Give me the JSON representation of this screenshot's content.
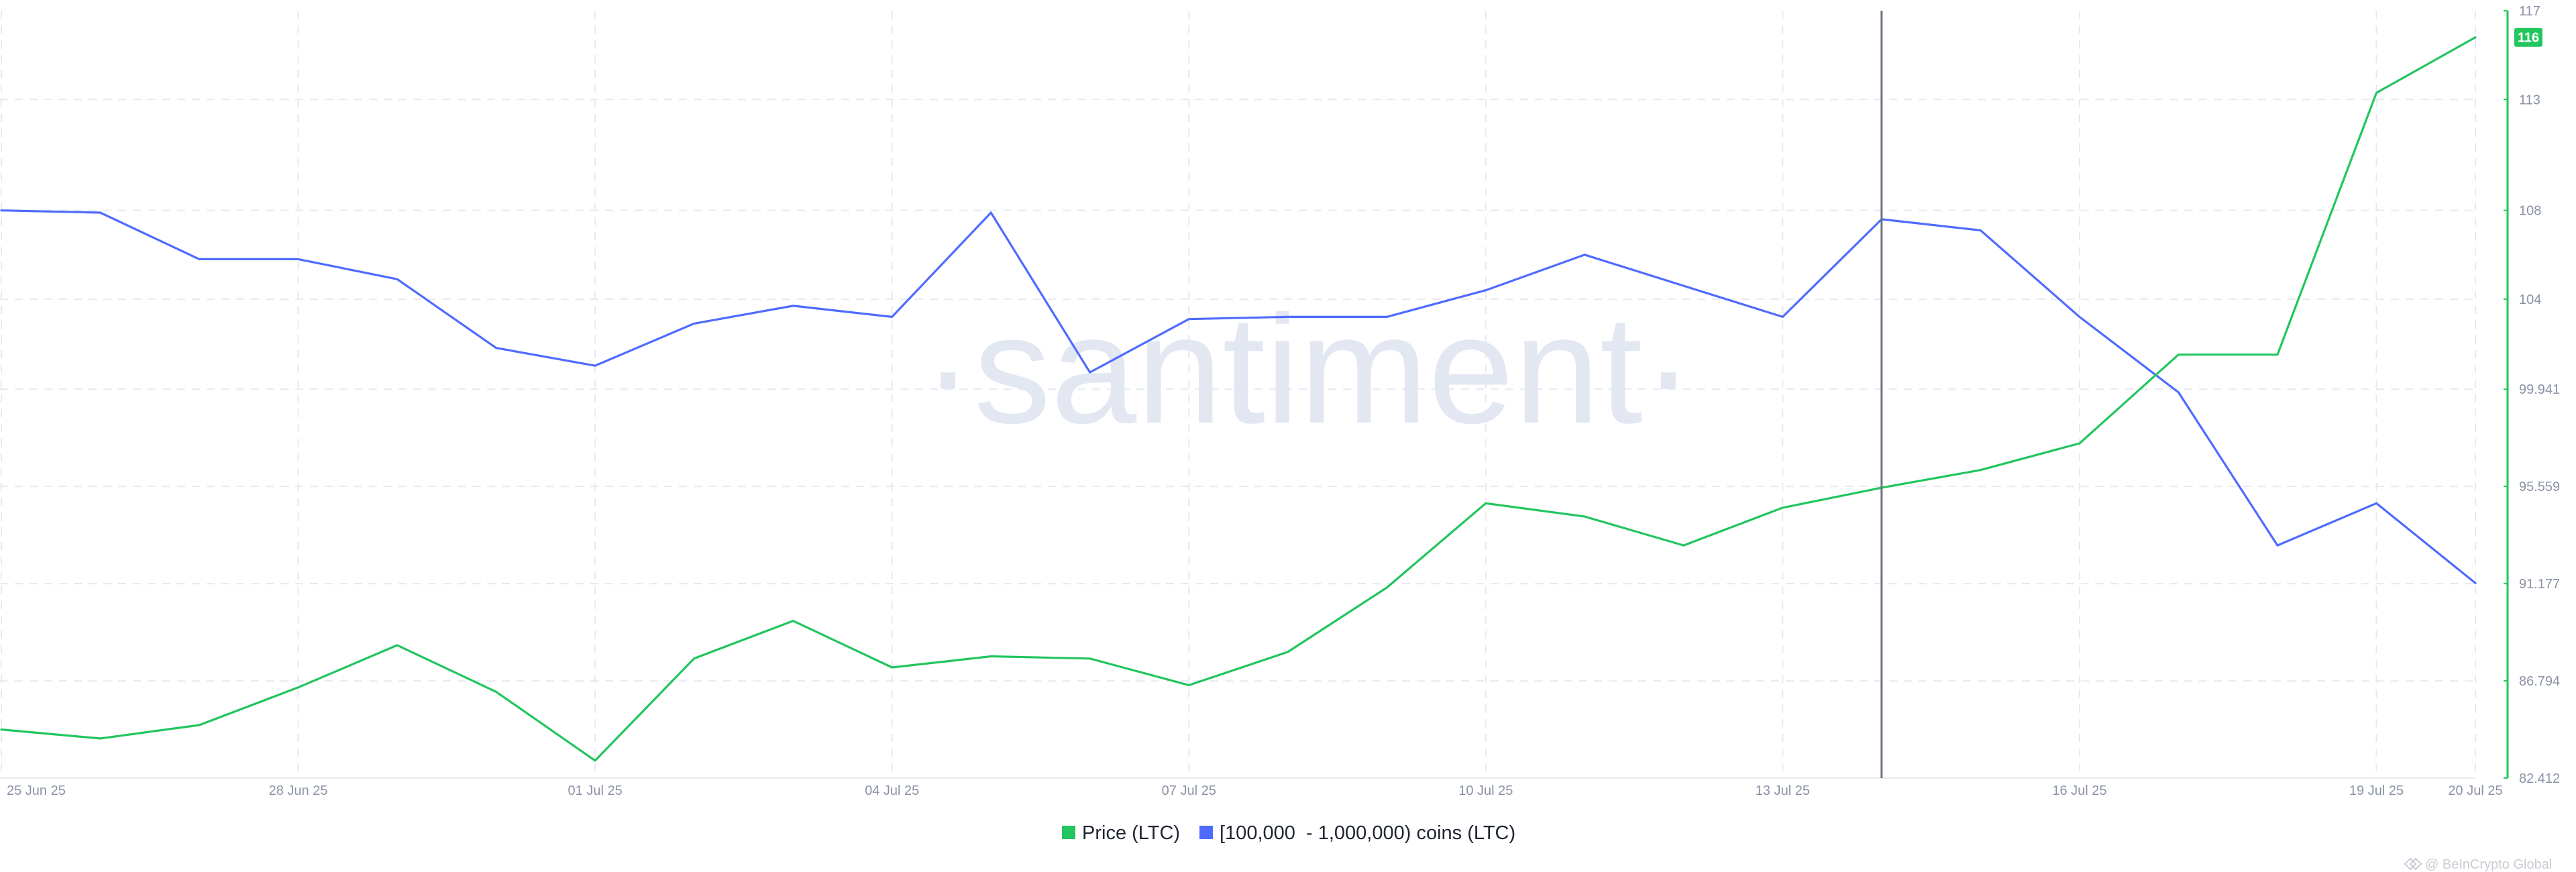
{
  "colors": {
    "price": "#22c55e",
    "holders": "#4f6bff",
    "grid": "#e6e9ef",
    "axis_text": "#8a92a6",
    "crosshair": "#6b7280",
    "watermark": "#e3e7f2"
  },
  "watermark": "·santiment·",
  "footer": "@ BeInCrypto Global",
  "footer_icon": "beincrypto-logo-icon",
  "current_price_badge": "116",
  "legend": [
    {
      "label": "Price (LTC)",
      "color": "#22c55e"
    },
    {
      "label": "[100,000  - 1,000,000) coins (LTC)",
      "color": "#4f6bff"
    }
  ],
  "chart_data": {
    "type": "line",
    "x": [
      "25 Jun 25",
      "26 Jun 25",
      "27 Jun 25",
      "28 Jun 25",
      "29 Jun 25",
      "30 Jun 25",
      "01 Jul 25",
      "02 Jul 25",
      "03 Jul 25",
      "04 Jul 25",
      "05 Jul 25",
      "06 Jul 25",
      "07 Jul 25",
      "08 Jul 25",
      "09 Jul 25",
      "10 Jul 25",
      "11 Jul 25",
      "12 Jul 25",
      "13 Jul 25",
      "14 Jul 25",
      "15 Jul 25",
      "16 Jul 25",
      "17 Jul 25",
      "18 Jul 25",
      "19 Jul 25",
      "20 Jul 25"
    ],
    "x_tick_labels": [
      "25 Jun 25",
      "28 Jun 25",
      "01 Jul 25",
      "04 Jul 25",
      "07 Jul 25",
      "10 Jul 25",
      "13 Jul 25",
      "16 Jul 25",
      "19 Jul 25",
      "20 Jul 25"
    ],
    "y_tick_labels": [
      "117",
      "113",
      "108",
      "104",
      "99.941",
      "95.559",
      "91.177",
      "86.794",
      "82.412"
    ],
    "ylim": [
      82.412,
      117
    ],
    "crosshair_x": "14 Jul 25",
    "grid": true,
    "legend_position": "bottom-center",
    "series": [
      {
        "name": "Price (LTC)",
        "color": "#22c55e",
        "values": [
          84.6,
          84.2,
          84.8,
          86.5,
          88.4,
          86.3,
          83.2,
          87.8,
          89.5,
          87.4,
          87.9,
          87.8,
          86.6,
          88.1,
          91.0,
          94.8,
          94.2,
          92.9,
          94.6,
          95.5,
          96.3,
          97.5,
          101.5,
          101.5,
          113.3,
          115.8
        ]
      },
      {
        "name": "[100,000  - 1,000,000) coins (LTC)",
        "color": "#4f6bff",
        "values": [
          108.0,
          107.9,
          105.8,
          105.8,
          104.9,
          101.8,
          101.0,
          102.9,
          103.7,
          103.2,
          107.9,
          100.7,
          103.1,
          103.2,
          103.2,
          104.4,
          106.0,
          104.6,
          103.2,
          107.6,
          107.1,
          103.2,
          99.8,
          92.9,
          94.8,
          91.2
        ]
      }
    ]
  }
}
